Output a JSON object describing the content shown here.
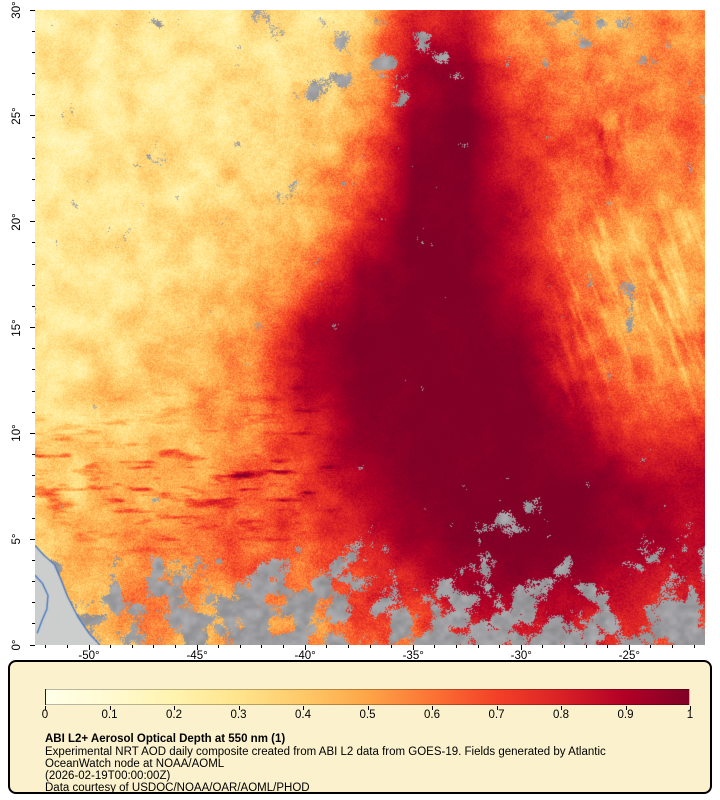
{
  "figure": {
    "background": "#ffffff",
    "panel_background": "#fbf2cd"
  },
  "map": {
    "x_axis": {
      "values": [
        -50,
        -45,
        -40,
        -35,
        -30,
        -25
      ],
      "labels": [
        "-50°",
        "-45°",
        "-40°",
        "-35°",
        "-30°",
        "-25°"
      ]
    },
    "y_axis": {
      "values": [
        30,
        25,
        20,
        15,
        10,
        5,
        0
      ],
      "labels": [
        "30°",
        "25°",
        "20°",
        "15°",
        "10°",
        "5°",
        "0°"
      ]
    },
    "extent": {
      "lon_min": -52.5,
      "lon_max": -21.5,
      "lat_min": 0,
      "lat_max": 30
    }
  },
  "legend": {
    "title": "ABI L2+ Aerosol Optical Depth at 550 nm (1)",
    "lines": [
      "Experimental NRT AOD daily composite created from ABI L2 data from GOES-19. Fields generated by Atlantic",
      "OceanWatch node at NOAA/AOML",
      "(2026-02-19T00:00:00Z)",
      "Data courtesy of USDOC/NOAA/OAR/AOML/PHOD"
    ],
    "colorbar": {
      "min": 0,
      "max": 1,
      "tick_labels": [
        "0",
        "0.1",
        "0.2",
        "0.3",
        "0.4",
        "0.5",
        "0.6",
        "0.7",
        "0.8",
        "0.9",
        "1"
      ]
    }
  },
  "chart_data": {
    "type": "heatmap",
    "title": "ABI L2+ Aerosol Optical Depth at 550 nm (1)",
    "variable": "Aerosol Optical Depth at 550 nm",
    "colorbar_range": [
      0,
      1
    ],
    "colorbar_ticks": [
      0,
      0.1,
      0.2,
      0.3,
      0.4,
      0.5,
      0.6,
      0.7,
      0.8,
      0.9,
      1
    ],
    "colormap_stops": [
      [
        0.0,
        "#ffffe9"
      ],
      [
        0.1,
        "#fffad0"
      ],
      [
        0.2,
        "#fff3ae"
      ],
      [
        0.3,
        "#ffe48c"
      ],
      [
        0.4,
        "#fec968"
      ],
      [
        0.5,
        "#fda547"
      ],
      [
        0.6,
        "#fc7335"
      ],
      [
        0.7,
        "#f34127"
      ],
      [
        0.8,
        "#da2126"
      ],
      [
        0.9,
        "#b20026"
      ],
      [
        1.0,
        "#800026"
      ]
    ],
    "lon_grid": [
      -52.5,
      -50,
      -47.5,
      -45,
      -42.5,
      -40,
      -37.5,
      -35,
      -32.5,
      -30,
      -27.5,
      -25,
      -22.5
    ],
    "lat_grid": [
      30,
      27.5,
      25,
      22.5,
      20,
      17.5,
      15,
      12.5,
      10,
      7.5,
      5,
      2.5,
      0
    ],
    "aod_grid": [
      [
        0.25,
        0.25,
        0.28,
        0.26,
        0.28,
        0.3,
        0.35,
        0.8,
        0.82,
        0.52,
        0.45,
        0.5,
        0.55
      ],
      [
        0.25,
        0.25,
        0.28,
        0.26,
        0.3,
        0.32,
        0.42,
        0.9,
        0.95,
        0.6,
        0.5,
        0.55,
        0.6
      ],
      [
        0.25,
        0.28,
        0.3,
        0.3,
        0.32,
        0.36,
        0.52,
        0.95,
        1.0,
        0.75,
        0.62,
        0.55,
        0.6
      ],
      [
        0.25,
        0.28,
        0.3,
        0.3,
        0.35,
        0.4,
        0.62,
        1.0,
        1.0,
        0.8,
        0.66,
        0.6,
        0.55
      ],
      [
        0.26,
        0.3,
        0.3,
        0.32,
        0.36,
        0.46,
        0.8,
        1.0,
        1.0,
        0.85,
        0.62,
        0.55,
        0.5
      ],
      [
        0.26,
        0.3,
        0.32,
        0.35,
        0.4,
        0.6,
        0.95,
        1.0,
        1.0,
        0.9,
        0.65,
        0.5,
        0.5
      ],
      [
        0.3,
        0.3,
        0.35,
        0.4,
        0.55,
        0.9,
        1.0,
        1.0,
        1.0,
        0.95,
        0.7,
        0.5,
        0.55
      ],
      [
        0.3,
        0.35,
        0.4,
        0.45,
        0.6,
        0.9,
        1.0,
        1.0,
        1.0,
        1.0,
        0.8,
        0.62,
        0.6
      ],
      [
        0.35,
        0.4,
        0.45,
        0.5,
        0.62,
        0.8,
        0.95,
        1.0,
        1.0,
        1.0,
        0.95,
        0.8,
        0.75
      ],
      [
        0.4,
        0.45,
        0.5,
        0.55,
        0.65,
        0.75,
        0.9,
        1.0,
        1.0,
        1.0,
        1.0,
        0.95,
        0.9
      ],
      [
        0.38,
        0.5,
        0.55,
        0.6,
        0.7,
        0.72,
        0.85,
        0.95,
        1.0,
        1.0,
        1.0,
        0.95,
        0.9
      ],
      [
        0.4,
        0.5,
        0.55,
        0.52,
        0.56,
        0.6,
        0.7,
        0.8,
        0.9,
        0.95,
        0.9,
        0.85,
        0.8
      ],
      [
        0.42,
        0.46,
        0.5,
        0.47,
        0.5,
        0.55,
        0.6,
        0.65,
        0.72,
        0.8,
        0.8,
        0.75,
        0.7
      ]
    ],
    "cloud_fraction_grid": [
      [
        0.05,
        0.05,
        0.08,
        0.05,
        0.1,
        0.3,
        0.38,
        0.22,
        0.12,
        0.05,
        0.25,
        0.15,
        0.05
      ],
      [
        0.03,
        0.03,
        0.08,
        0.05,
        0.08,
        0.28,
        0.35,
        0.28,
        0.18,
        0.1,
        0.2,
        0.1,
        0.05
      ],
      [
        0.03,
        0.05,
        0.05,
        0.05,
        0.05,
        0.1,
        0.15,
        0.1,
        0.05,
        0.08,
        0.12,
        0.05,
        0.05
      ],
      [
        0.03,
        0.03,
        0.05,
        0.03,
        0.05,
        0.1,
        0.08,
        0.05,
        0.03,
        0.05,
        0.08,
        0.08,
        0.05
      ],
      [
        0.03,
        0.03,
        0.03,
        0.03,
        0.05,
        0.12,
        0.15,
        0.05,
        0.03,
        0.03,
        0.05,
        0.12,
        0.08
      ],
      [
        0.03,
        0.03,
        0.03,
        0.05,
        0.05,
        0.08,
        0.05,
        0.03,
        0.03,
        0.03,
        0.08,
        0.15,
        0.1
      ],
      [
        0.03,
        0.03,
        0.05,
        0.05,
        0.05,
        0.05,
        0.03,
        0.03,
        0.03,
        0.03,
        0.05,
        0.18,
        0.1
      ],
      [
        0.03,
        0.03,
        0.03,
        0.05,
        0.05,
        0.08,
        0.05,
        0.03,
        0.03,
        0.05,
        0.05,
        0.08,
        0.08
      ],
      [
        0.05,
        0.03,
        0.05,
        0.05,
        0.05,
        0.05,
        0.1,
        0.05,
        0.03,
        0.05,
        0.05,
        0.05,
        0.05
      ],
      [
        0.08,
        0.05,
        0.05,
        0.05,
        0.05,
        0.05,
        0.08,
        0.05,
        0.05,
        0.08,
        0.08,
        0.05,
        0.05
      ],
      [
        0.3,
        0.15,
        0.08,
        0.08,
        0.08,
        0.1,
        0.12,
        0.15,
        0.3,
        0.25,
        0.2,
        0.15,
        0.25
      ],
      [
        0.4,
        0.3,
        0.35,
        0.5,
        0.45,
        0.55,
        0.6,
        0.55,
        0.5,
        0.3,
        0.45,
        0.35,
        0.5
      ],
      [
        0.45,
        0.5,
        0.45,
        0.55,
        0.6,
        0.65,
        0.6,
        0.55,
        0.5,
        0.35,
        0.55,
        0.4,
        0.6
      ]
    ],
    "cloud_color": "#8f9193",
    "land_color": "#cbcecd",
    "coast_color": "#4a79c1",
    "river_color": "#4a79c1",
    "land_polygon": [
      [
        -52.5,
        4.7
      ],
      [
        -52.1,
        4.25
      ],
      [
        -51.6,
        3.8
      ],
      [
        -51.3,
        3.1
      ],
      [
        -51.0,
        2.3
      ],
      [
        -50.5,
        1.3
      ],
      [
        -50.0,
        0.55
      ],
      [
        -49.5,
        0
      ],
      [
        -52.5,
        0
      ]
    ],
    "coastline": [
      [
        -52.5,
        4.7
      ],
      [
        -52.1,
        4.25
      ],
      [
        -51.6,
        3.8
      ],
      [
        -51.3,
        3.1
      ],
      [
        -51.0,
        2.3
      ],
      [
        -50.5,
        1.3
      ],
      [
        -50.0,
        0.55
      ],
      [
        -49.5,
        0
      ]
    ],
    "river_line": [
      [
        -52.5,
        3.3
      ],
      [
        -52.15,
        2.9
      ],
      [
        -51.9,
        2.35
      ],
      [
        -51.95,
        1.7
      ],
      [
        -52.2,
        1.1
      ],
      [
        -52.4,
        0.55
      ]
    ]
  }
}
